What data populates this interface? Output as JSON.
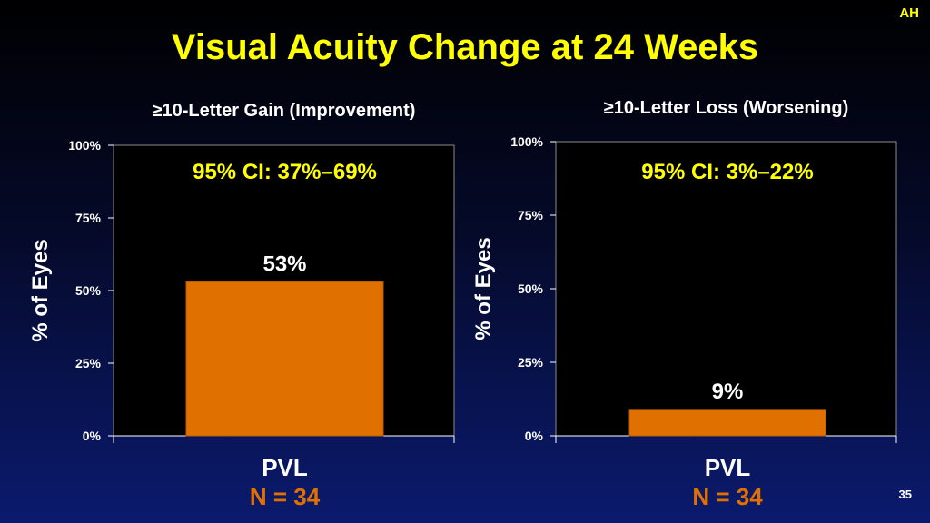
{
  "header": {
    "title": "Visual Acuity Change at 24 Weeks",
    "corner_tag": "AH"
  },
  "footer": {
    "page_number": "35"
  },
  "colors": {
    "title": "#ffff00",
    "bar": "#e07000",
    "n_label": "#e07000",
    "plot_bg": "#000000",
    "background_bottom": "#0b1a6e"
  },
  "chart_data": [
    {
      "type": "bar",
      "title": "≥10-Letter Gain (Improvement)",
      "annotation": "95% CI: 37%–69%",
      "categories": [
        "PVL"
      ],
      "category_note": "N = 34",
      "values": [
        53
      ],
      "value_labels": [
        "53%"
      ],
      "ylabel": "% of Eyes",
      "ylim": [
        0,
        100
      ],
      "yticks": [
        0,
        25,
        50,
        75,
        100
      ],
      "ytick_labels": [
        "0%",
        "25%",
        "50%",
        "75%",
        "100%"
      ]
    },
    {
      "type": "bar",
      "title": "≥10-Letter Loss (Worsening)",
      "annotation": "95% CI: 3%–22%",
      "categories": [
        "PVL"
      ],
      "category_note": "N = 34",
      "values": [
        9
      ],
      "value_labels": [
        "9%"
      ],
      "ylabel": "% of Eyes",
      "ylim": [
        0,
        100
      ],
      "yticks": [
        0,
        25,
        50,
        75,
        100
      ],
      "ytick_labels": [
        "0%",
        "25%",
        "50%",
        "75%",
        "100%"
      ]
    }
  ]
}
